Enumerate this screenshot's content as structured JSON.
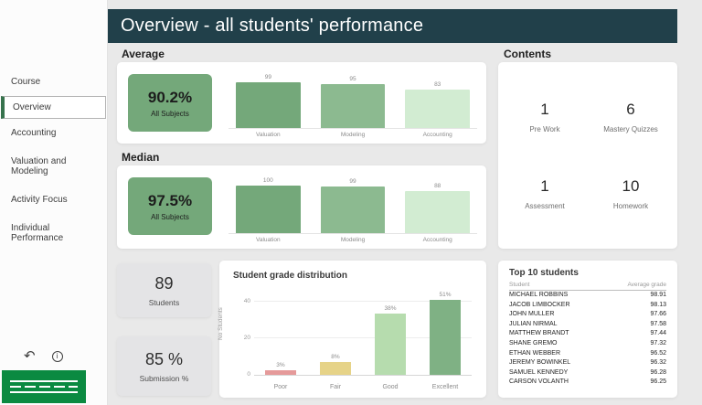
{
  "colors": {
    "header_bg": "#21404a",
    "kpi_green": "#74a87a",
    "nav_accent_green": "#37734d",
    "bar_green_dark": "#74a87a",
    "bar_green_mid": "#8cba90",
    "bar_green_pale": "#d2ecd2",
    "bar_poor": "#e59a9a",
    "bar_fair": "#e6d388",
    "bar_good": "#b6dcae",
    "bar_excellent": "#7fb184",
    "logo_green": "#0b8a41"
  },
  "header": {
    "title": "Overview - all students' performance"
  },
  "sidebar": {
    "items": [
      {
        "label": "Course"
      },
      {
        "label": "Overview",
        "selected": true
      },
      {
        "label": "Accounting"
      },
      {
        "label": "Valuation and Modeling"
      },
      {
        "label": "Activity Focus"
      },
      {
        "label": "Individual Performance"
      }
    ]
  },
  "average": {
    "section_label": "Average",
    "kpi_value": "90.2%",
    "kpi_label": "All Subjects",
    "chart": {
      "type": "bar",
      "categories": [
        "Valuation",
        "Modeling",
        "Accounting"
      ],
      "values": [
        99,
        95,
        83
      ]
    }
  },
  "median": {
    "section_label": "Median",
    "kpi_value": "97.5%",
    "kpi_label": "All Subjects",
    "chart": {
      "type": "bar",
      "categories": [
        "Valuation",
        "Modeling",
        "Accounting"
      ],
      "values": [
        100,
        99,
        88
      ]
    }
  },
  "contents": {
    "section_label": "Contents",
    "items": [
      {
        "value": "1",
        "label": "Pre Work"
      },
      {
        "value": "6",
        "label": "Mastery Quizzes"
      },
      {
        "value": "1",
        "label": "Assessment"
      },
      {
        "value": "10",
        "label": "Homework"
      }
    ]
  },
  "stats": {
    "students_value": "89",
    "students_label": "Students",
    "submission_value": "85 %",
    "submission_label": "Submission %"
  },
  "distribution": {
    "title": "Student grade distribution",
    "type": "bar",
    "ylabel": "No Students",
    "yticks": [
      "40",
      "20",
      "0"
    ],
    "categories": [
      "Poor",
      "Fair",
      "Good",
      "Excellent"
    ],
    "percent_labels": [
      "3%",
      "8%",
      "38%",
      "51%"
    ],
    "values": [
      3,
      8,
      38,
      51
    ]
  },
  "top10": {
    "title": "Top 10 students",
    "columns": [
      "Student",
      "Average grade"
    ],
    "rows": [
      {
        "name": "MICHAEL ROBBINS",
        "grade": "98.91"
      },
      {
        "name": "JACOB LIMBOCKER",
        "grade": "98.13"
      },
      {
        "name": "JOHN MULLER",
        "grade": "97.66"
      },
      {
        "name": "JULIAN NIRMAL",
        "grade": "97.58"
      },
      {
        "name": "MATTHEW BRANDT",
        "grade": "97.44"
      },
      {
        "name": "SHANE GREMO",
        "grade": "97.32"
      },
      {
        "name": "ETHAN WEBBER",
        "grade": "96.52"
      },
      {
        "name": "JEREMY BOWINKEL",
        "grade": "96.32"
      },
      {
        "name": "SAMUEL KENNEDY",
        "grade": "96.28"
      },
      {
        "name": "CARSON VOLANTH",
        "grade": "96.25"
      }
    ]
  }
}
